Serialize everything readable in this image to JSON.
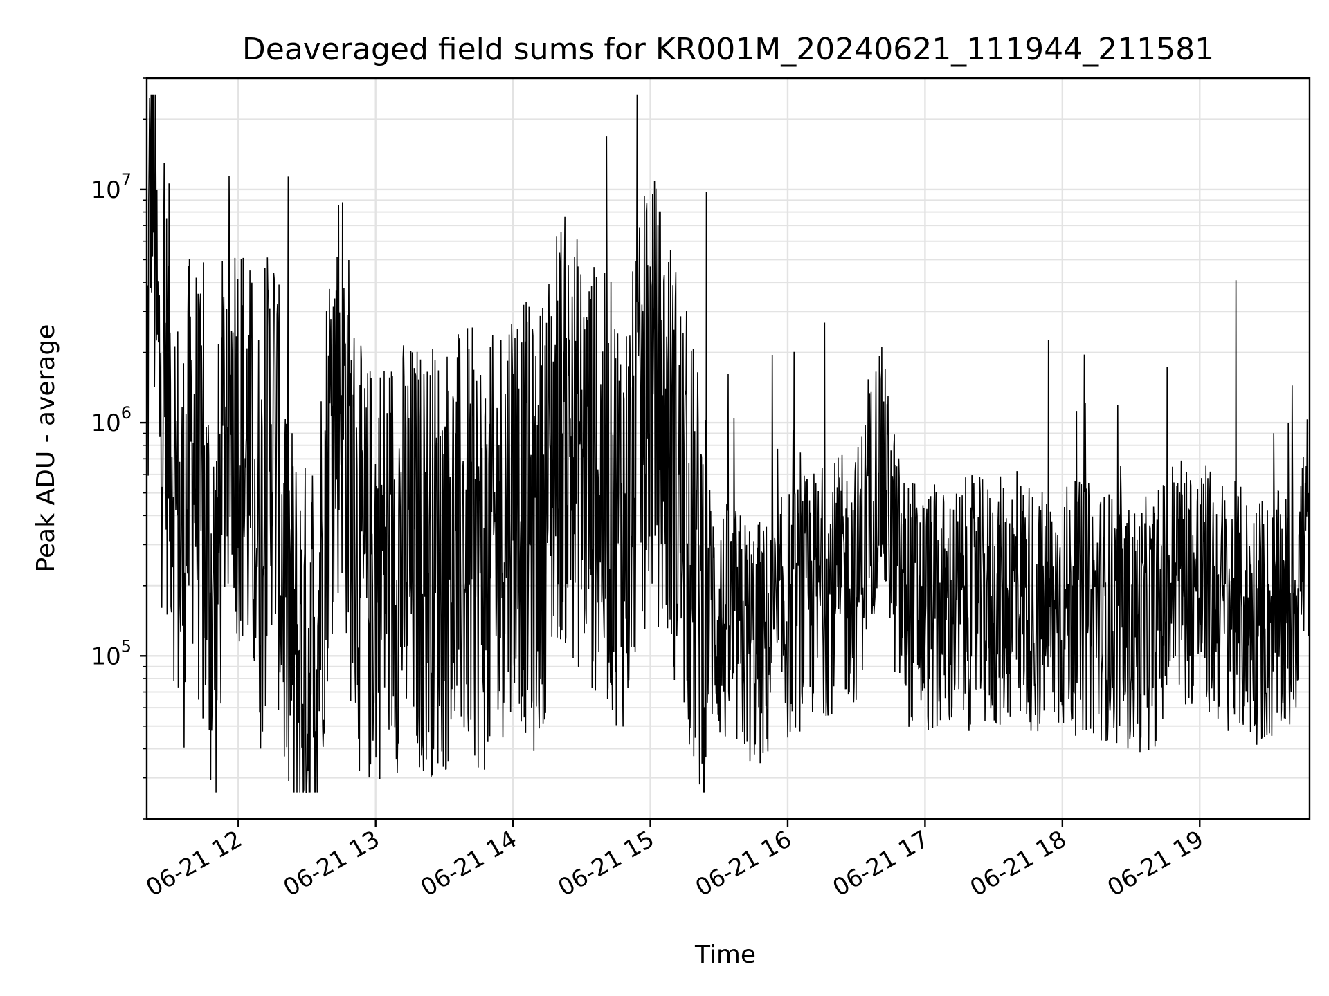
{
  "chart_data": {
    "type": "line",
    "title": "Deaveraged field sums for KR001M_20240621_111944_211581",
    "xlabel": "Time",
    "ylabel": "Peak ADU - average",
    "yscale": "log",
    "ylim": [
      20000,
      30000000
    ],
    "xlim": [
      "06-21 11:20",
      "06-21 19:48"
    ],
    "grid": true,
    "legend": "none",
    "line_color": "#000000",
    "x_ticks": [
      "06-21 12",
      "06-21 13",
      "06-21 14",
      "06-21 15",
      "06-21 16",
      "06-21 17",
      "06-21 18",
      "06-21 19"
    ],
    "y_ticks": [
      {
        "base": "10",
        "exp": "5"
      },
      {
        "base": "10",
        "exp": "6"
      },
      {
        "base": "10",
        "exp": "7"
      }
    ],
    "series": [
      {
        "x": [
          "06-21 11:20",
          "06-21 11:22",
          "06-21 11:25",
          "06-21 11:30",
          "06-21 11:35",
          "06-21 11:40",
          "06-21 11:45",
          "06-21 11:50",
          "06-21 11:55",
          "06-21 12:00",
          "06-21 12:05",
          "06-21 12:10",
          "06-21 12:15",
          "06-21 12:20",
          "06-21 12:25",
          "06-21 12:30",
          "06-21 12:35",
          "06-21 12:40",
          "06-21 12:45",
          "06-21 12:50",
          "06-21 12:55",
          "06-21 13:00",
          "06-21 13:10",
          "06-21 13:20",
          "06-21 13:30",
          "06-21 13:40",
          "06-21 13:50",
          "06-21 14:00",
          "06-21 14:10",
          "06-21 14:20",
          "06-21 14:30",
          "06-21 14:40",
          "06-21 14:50",
          "06-21 15:00",
          "06-21 15:10",
          "06-21 15:20",
          "06-21 15:30",
          "06-21 15:40",
          "06-21 15:50",
          "06-21 16:00",
          "06-21 16:10",
          "06-21 16:20",
          "06-21 16:30",
          "06-21 16:40",
          "06-21 16:50",
          "06-21 17:00",
          "06-21 17:10",
          "06-21 17:20",
          "06-21 17:30",
          "06-21 17:40",
          "06-21 17:50",
          "06-21 18:00",
          "06-21 18:10",
          "06-21 18:20",
          "06-21 18:30",
          "06-21 18:40",
          "06-21 18:50",
          "06-21 19:00",
          "06-21 19:10",
          "06-21 19:20",
          "06-21 19:30",
          "06-21 19:40",
          "06-21 19:48"
        ],
        "y": [
          900000,
          22000000,
          1500000,
          1200000,
          250000,
          900000,
          300000,
          150000,
          1500000,
          1000000,
          600000,
          300000,
          1200000,
          200000,
          100000,
          80000,
          150000,
          900000,
          1800000,
          400000,
          200000,
          250000,
          280000,
          260000,
          270000,
          300000,
          250000,
          550000,
          300000,
          1000000,
          700000,
          500000,
          400000,
          1500000,
          700000,
          220000,
          140000,
          120000,
          110000,
          150000,
          180000,
          200000,
          220000,
          700000,
          180000,
          160000,
          150000,
          170000,
          160000,
          190000,
          150000,
          160000,
          160000,
          150000,
          130000,
          140000,
          230000,
          200000,
          170000,
          150000,
          140000,
          150000,
          400000
        ]
      }
    ]
  }
}
